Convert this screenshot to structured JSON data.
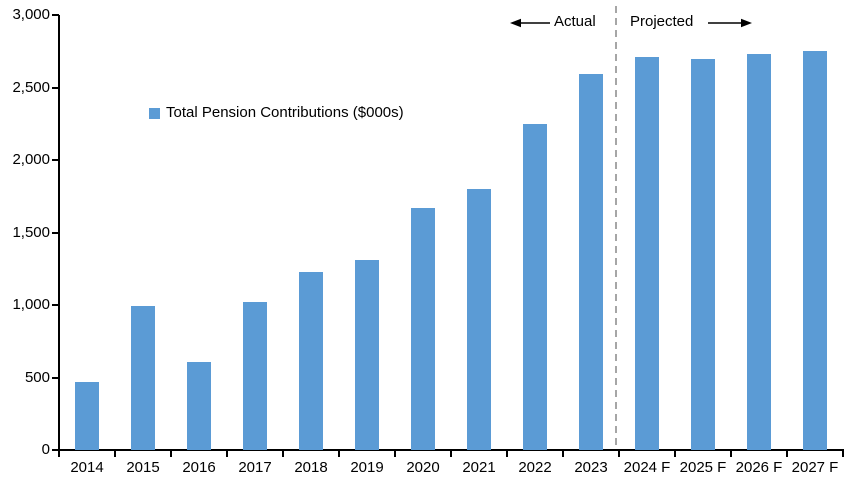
{
  "chart_data": {
    "type": "bar",
    "title": "",
    "series_name": "Total Pension Contributions ($000s)",
    "categories": [
      "2014",
      "2015",
      "2016",
      "2017",
      "2018",
      "2019",
      "2020",
      "2021",
      "2022",
      "2023",
      "2024 F",
      "2025 F",
      "2026 F",
      "2027 F"
    ],
    "values": [
      470,
      990,
      610,
      1020,
      1230,
      1310,
      1670,
      1800,
      2250,
      2590,
      2710,
      2700,
      2730,
      2750
    ],
    "ylim": [
      0,
      3000
    ],
    "y_tick_step": 500,
    "y_tick_labels": [
      "0",
      "500",
      "1,000",
      "1,500",
      "2,000",
      "2,500",
      "3,000"
    ],
    "grid": false,
    "bar_color": "#5B9BD5",
    "axis_color": "#000000",
    "divider": {
      "after_category": "2023",
      "style": "dashed",
      "color": "#A6A6A6"
    },
    "annotations": {
      "left_of_divider": "Actual",
      "right_of_divider": "Projected"
    },
    "legend": {
      "label": "Total Pension Contributions ($000s)",
      "marker_color": "#5B9BD5",
      "position": "inside-upper-left"
    }
  }
}
